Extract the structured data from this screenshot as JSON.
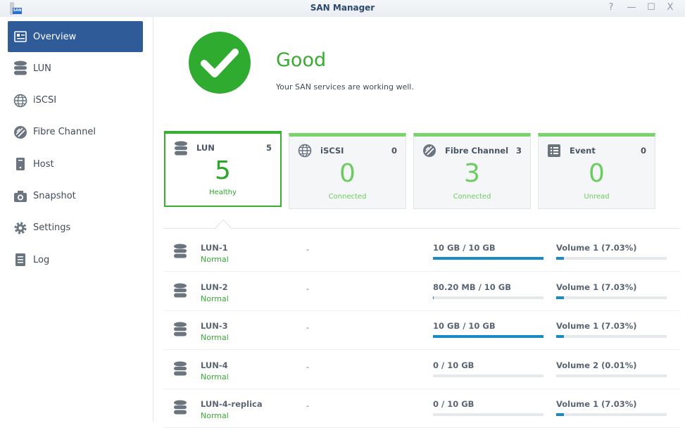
{
  "window": {
    "title": "SAN Manager",
    "app_icon_text": "SAN",
    "controls": [
      "?",
      "—",
      "☐",
      "X"
    ]
  },
  "sidebar": {
    "items": [
      {
        "label": "Overview",
        "icon": "overview-icon",
        "active": true
      },
      {
        "label": "LUN",
        "icon": "database-icon"
      },
      {
        "label": "iSCSI",
        "icon": "globe-icon"
      },
      {
        "label": "Fibre Channel",
        "icon": "fibre-channel-icon"
      },
      {
        "label": "Host",
        "icon": "host-icon"
      },
      {
        "label": "Snapshot",
        "icon": "camera-icon"
      },
      {
        "label": "Settings",
        "icon": "gear-icon"
      },
      {
        "label": "Log",
        "icon": "log-icon"
      }
    ]
  },
  "status": {
    "title": "Good",
    "message": "Your SAN services are working well.",
    "color": "#2fab2f"
  },
  "cards": [
    {
      "name": "LUN",
      "count": "5",
      "big": "5",
      "status": "Healthy",
      "icon": "database-icon",
      "selected": true
    },
    {
      "name": "iSCSI",
      "count": "0",
      "big": "0",
      "status": "Connected",
      "icon": "globe-icon"
    },
    {
      "name": "Fibre Channel",
      "count": "3",
      "big": "3",
      "status": "Connected",
      "icon": "fibre-channel-icon"
    },
    {
      "name": "Event",
      "count": "0",
      "big": "0",
      "status": "Unread",
      "icon": "event-icon"
    }
  ],
  "luns": [
    {
      "name": "LUN-1",
      "status": "Normal",
      "target": "-",
      "capacity": "10 GB / 10 GB",
      "capacity_pct": 100,
      "volume": "Volume 1 (7.03%)",
      "volume_pct": 7.03
    },
    {
      "name": "LUN-2",
      "status": "Normal",
      "target": "-",
      "capacity": "80.20 MB / 10 GB",
      "capacity_pct": 0.8,
      "volume": "Volume 1 (7.03%)",
      "volume_pct": 7.03
    },
    {
      "name": "LUN-3",
      "status": "Normal",
      "target": "-",
      "capacity": "10 GB / 10 GB",
      "capacity_pct": 100,
      "volume": "Volume 1 (7.03%)",
      "volume_pct": 7.03
    },
    {
      "name": "LUN-4",
      "status": "Normal",
      "target": "-",
      "capacity": "0 / 10 GB",
      "capacity_pct": 0,
      "volume": "Volume 2 (0.01%)",
      "volume_pct": 0.01
    },
    {
      "name": "LUN-4-replica",
      "status": "Normal",
      "target": "-",
      "capacity": "0 / 10 GB",
      "capacity_pct": 0,
      "volume": "Volume 1 (7.03%)",
      "volume_pct": 7.03
    }
  ]
}
